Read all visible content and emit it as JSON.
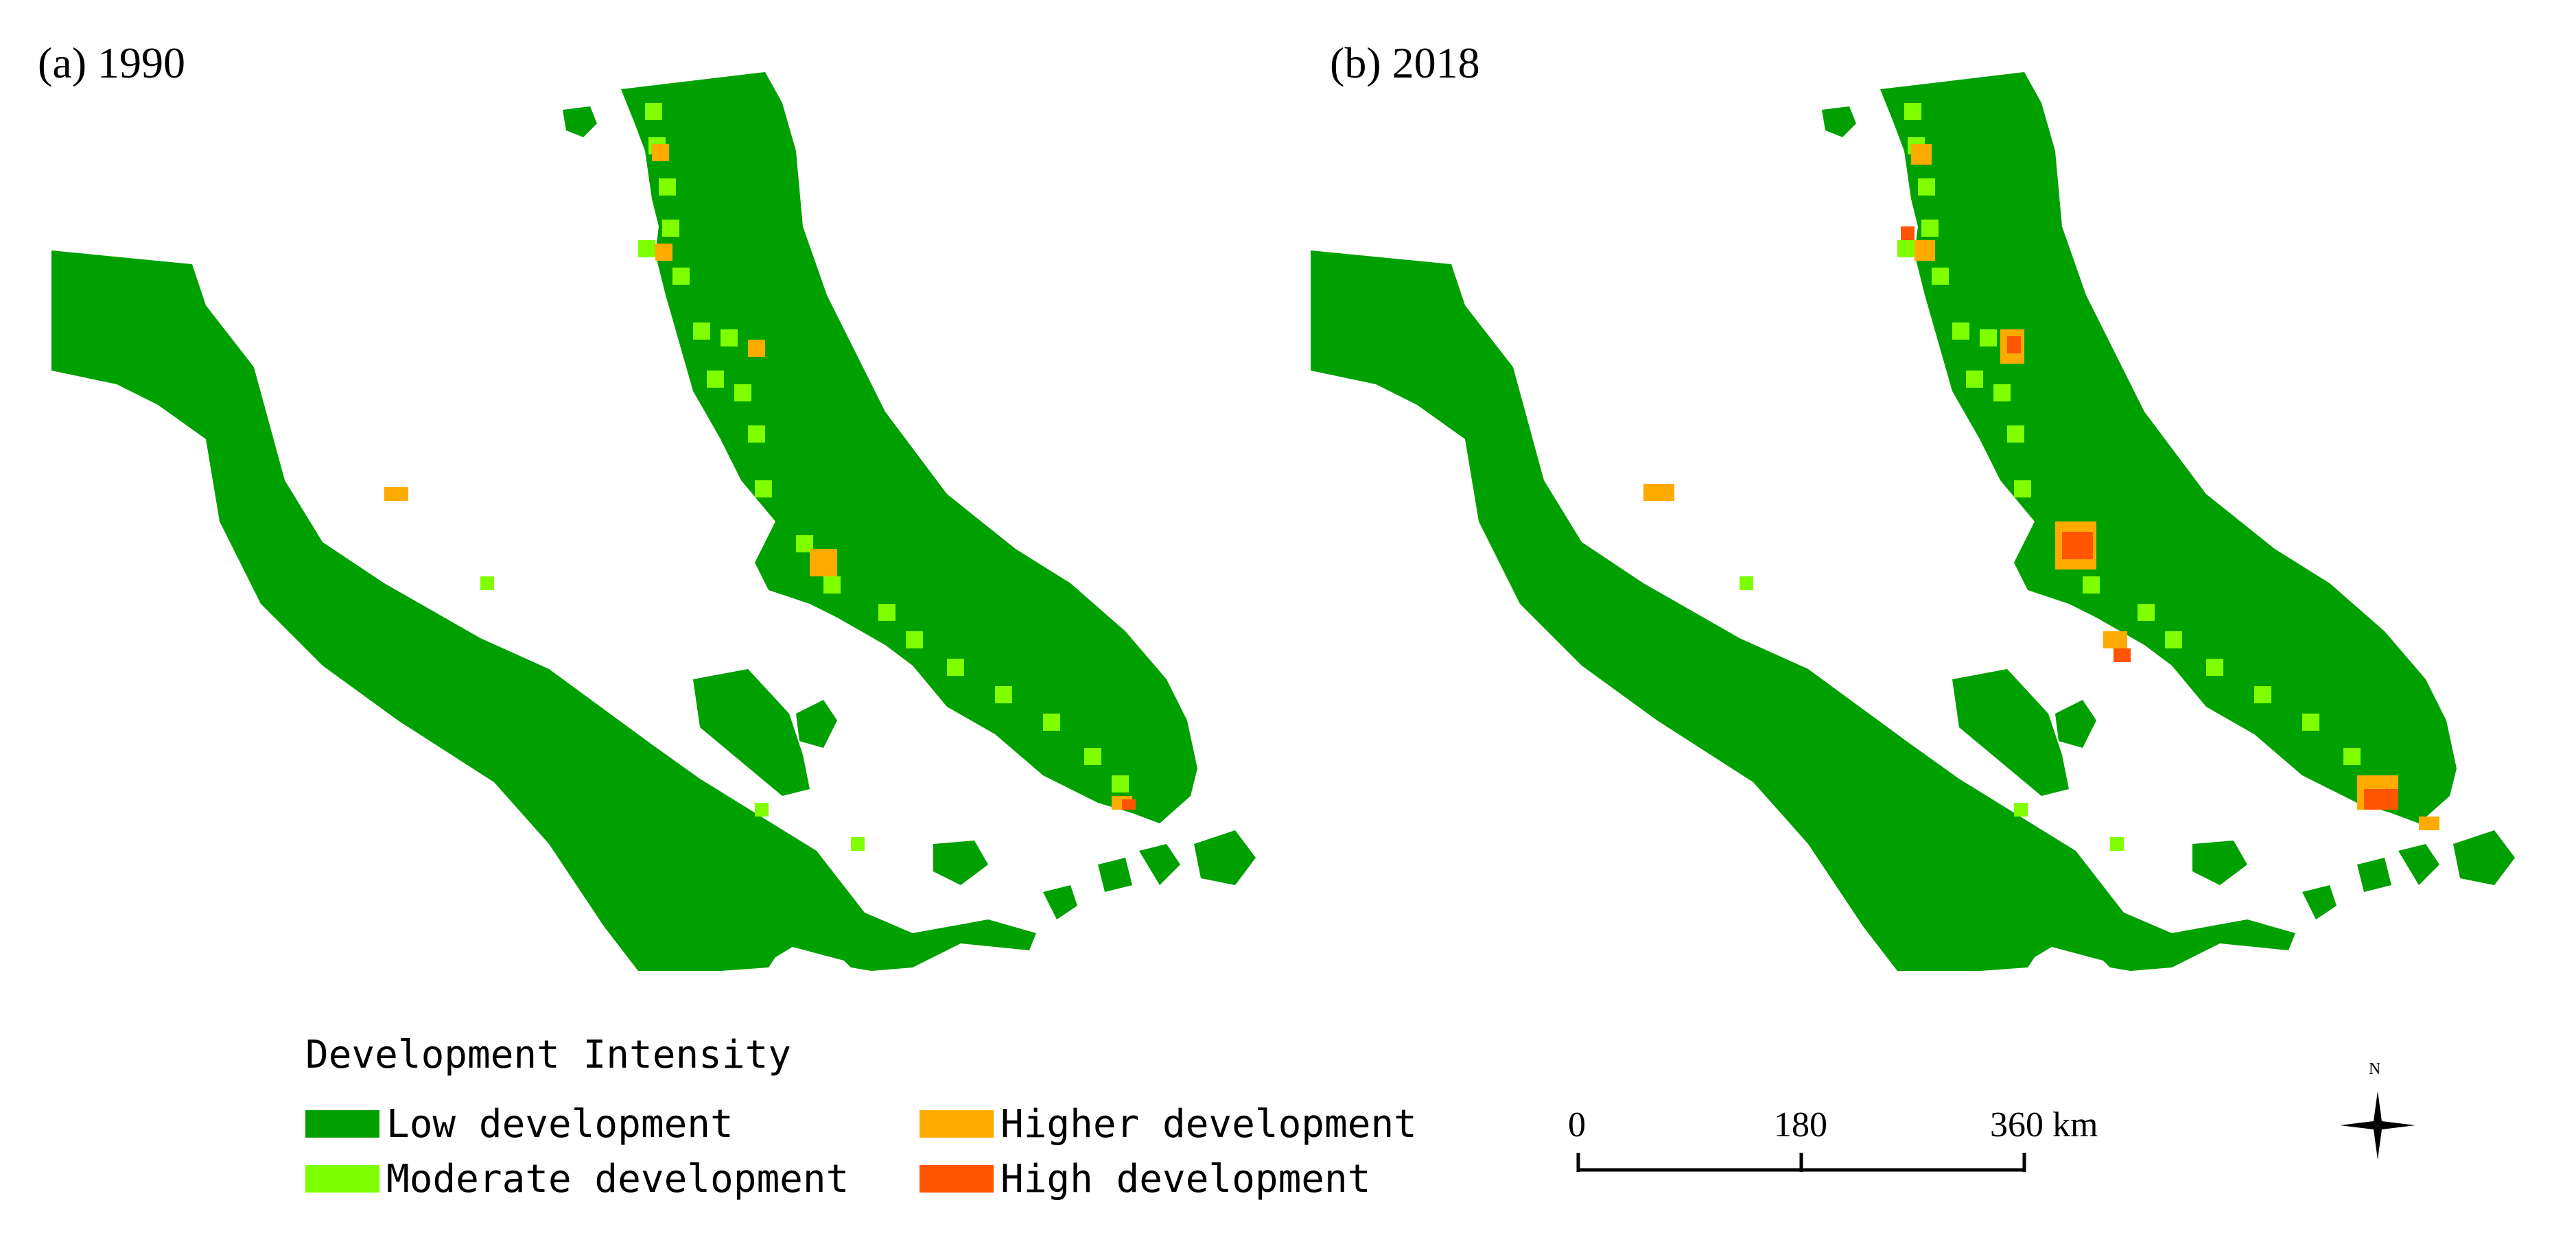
{
  "panels": [
    {
      "label": "(a) 1990"
    },
    {
      "label": "(b) 2018"
    }
  ],
  "legend": {
    "title": "Development Intensity",
    "items": [
      {
        "label": "Low development",
        "color": "#00a000"
      },
      {
        "label": "Moderate development",
        "color": "#80ff00"
      },
      {
        "label": "Higher development",
        "color": "#ffaa00"
      },
      {
        "label": "High development",
        "color": "#ff5500"
      }
    ]
  },
  "scale_bar": {
    "labels": [
      "0",
      "180",
      "360 km"
    ]
  },
  "north_arrow": {
    "label": "N",
    "icon": "north-arrow-icon"
  }
}
